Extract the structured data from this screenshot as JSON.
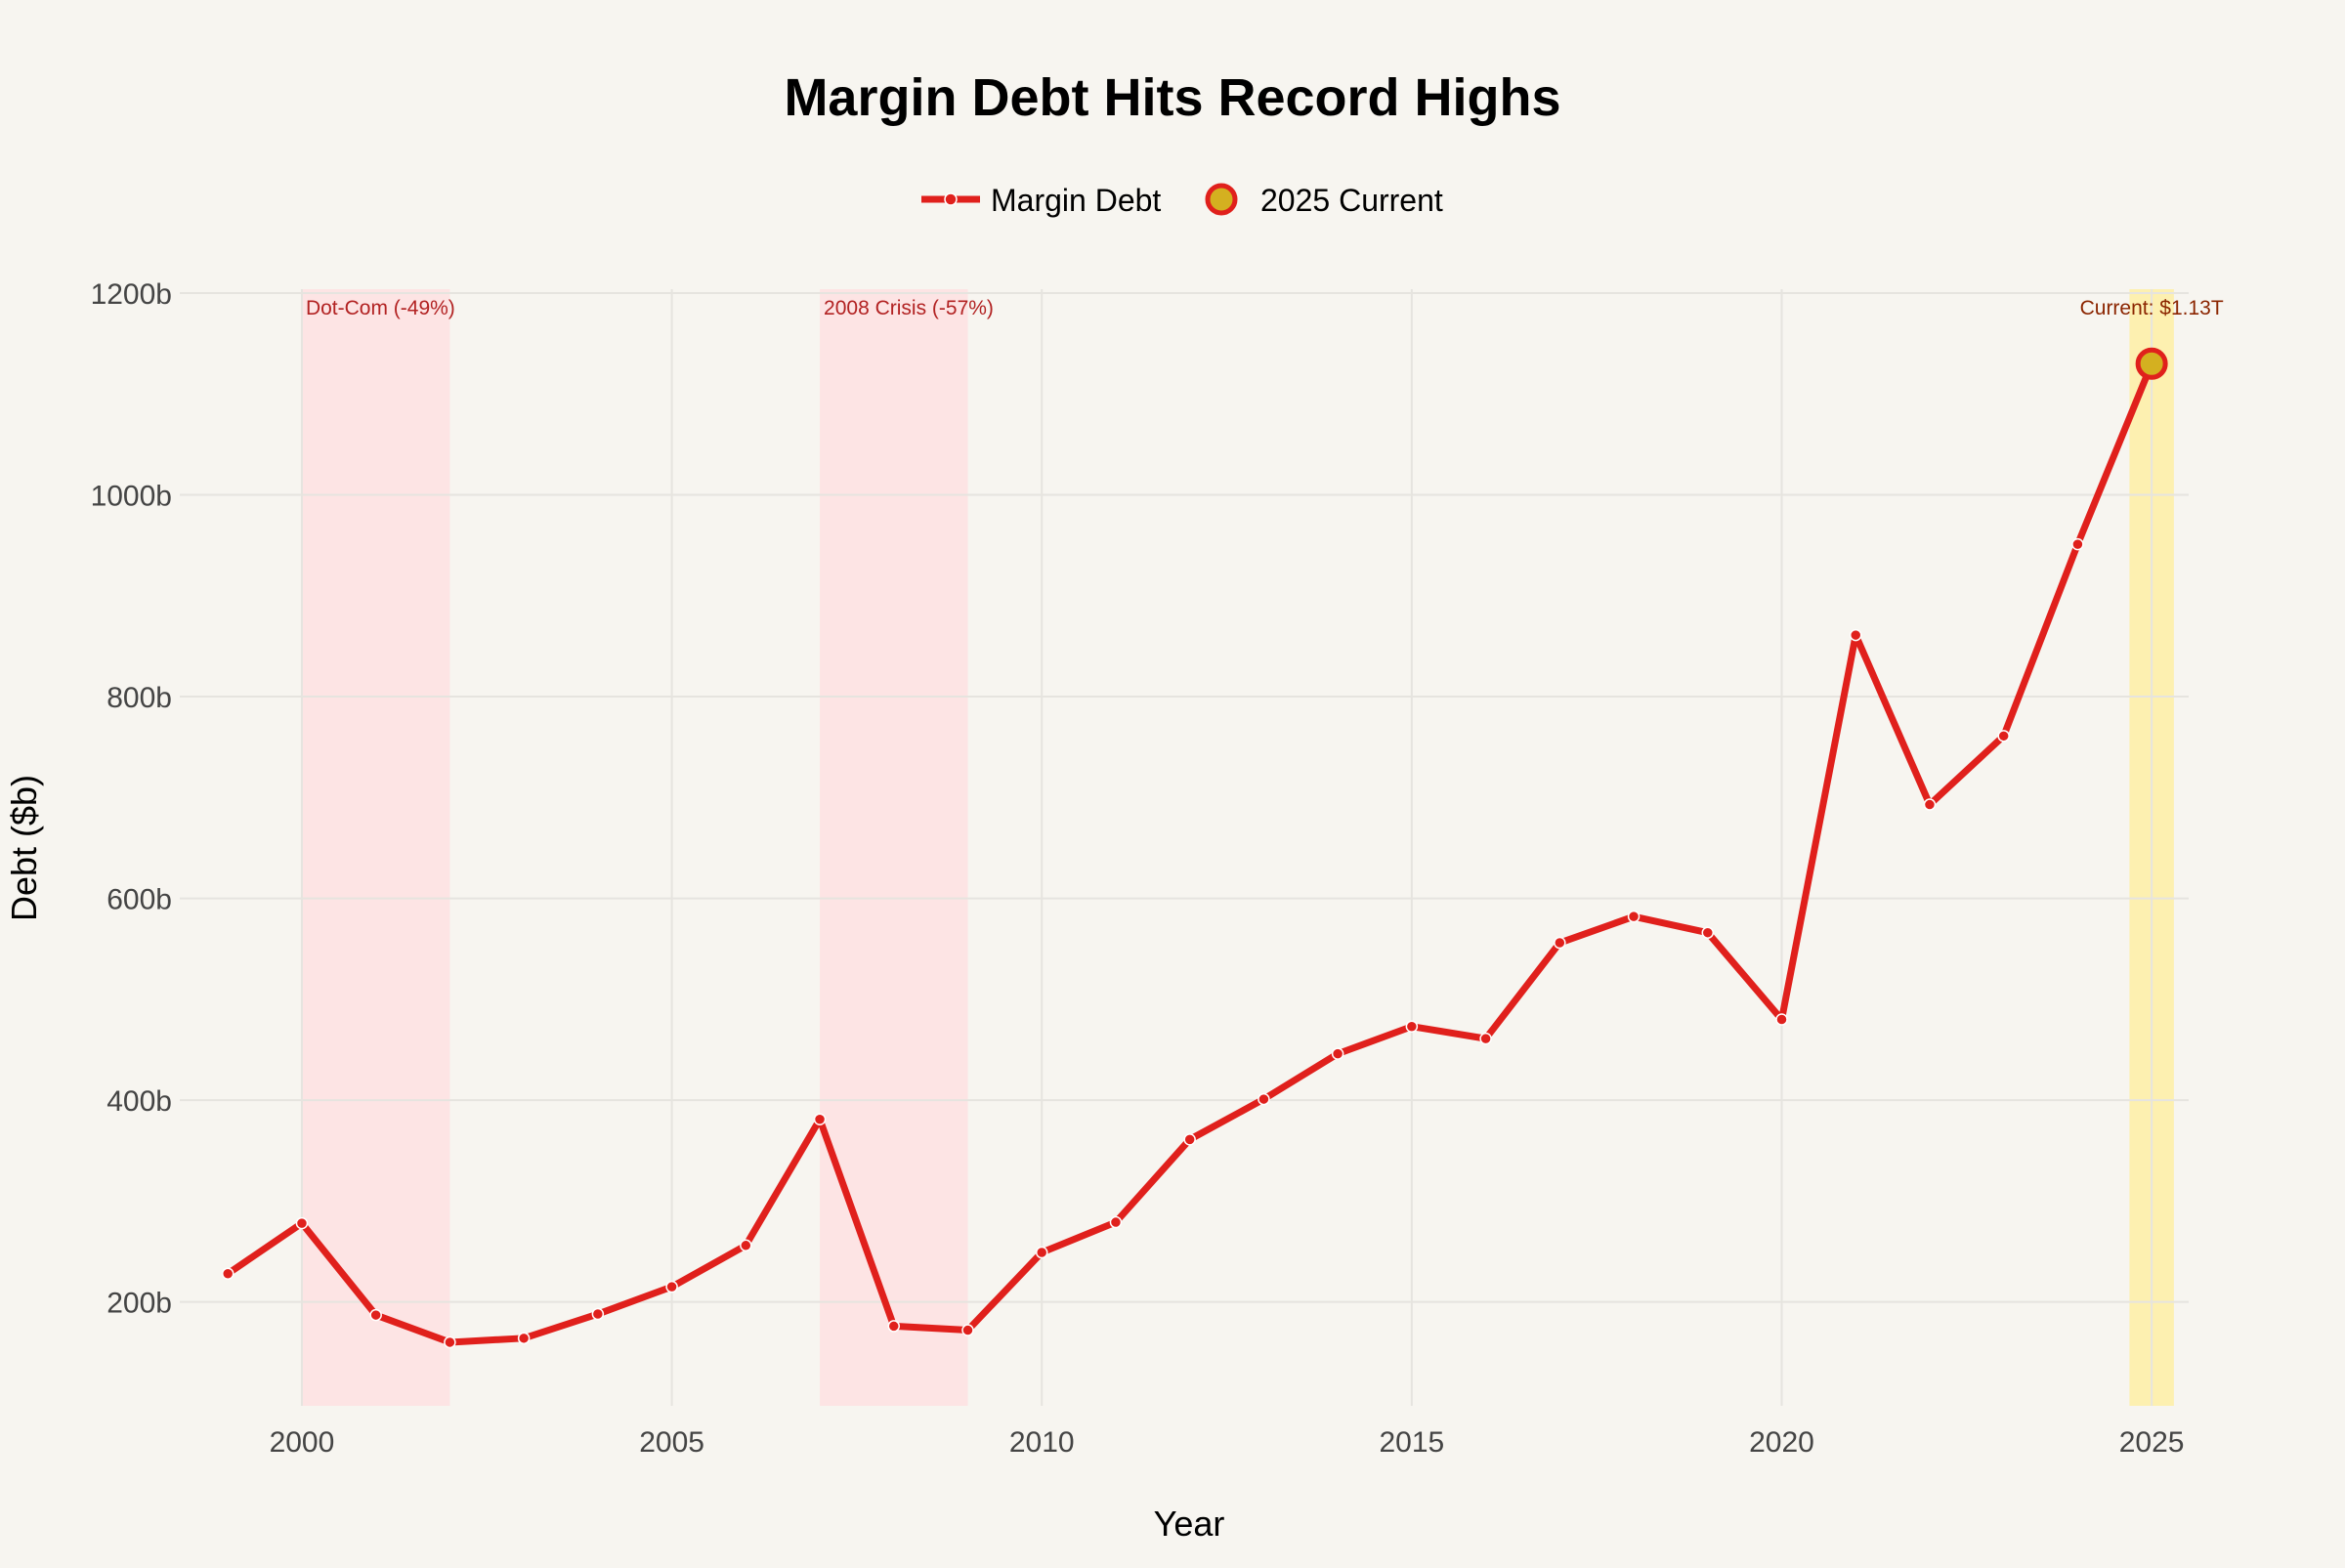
{
  "chart_data": {
    "type": "line",
    "title": "Margin Debt Hits Record Highs",
    "xlabel": "Year",
    "ylabel": "Debt ($b)",
    "xlim": [
      1998.35,
      2025.5
    ],
    "ylim": [
      97,
      1200
    ],
    "grid": true,
    "legend_placement": "top-center",
    "x_ticks": [
      2000,
      2005,
      2010,
      2015,
      2020,
      2025
    ],
    "x_tick_labels": [
      "2000",
      "2005",
      "2010",
      "2015",
      "2020",
      "2025"
    ],
    "y_ticks": [
      200,
      400,
      600,
      800,
      1000,
      1200
    ],
    "y_tick_labels": [
      "200b",
      "400b",
      "600b",
      "800b",
      "1000b",
      "1200b"
    ],
    "series": [
      {
        "name": "Margin Debt",
        "color": "#e0201c",
        "x": [
          1999,
          2000,
          2001,
          2002,
          2003,
          2004,
          2005,
          2006,
          2007,
          2008,
          2009,
          2010,
          2011,
          2012,
          2013,
          2014,
          2015,
          2016,
          2017,
          2018,
          2019,
          2020,
          2021,
          2022,
          2023,
          2024,
          2025
        ],
        "y": [
          228,
          278,
          187,
          160,
          164,
          188,
          215,
          256,
          381,
          176,
          172,
          249,
          279,
          361,
          401,
          446,
          473,
          461,
          556,
          582,
          566,
          480,
          861,
          693,
          761,
          951,
          1130
        ]
      }
    ],
    "highlight_point": {
      "name": "2025 Current",
      "x": 2025,
      "y": 1130,
      "fill": "#d4b020",
      "stroke": "#e0201c"
    },
    "shaded_regions": [
      {
        "x0": 2000,
        "x1": 2002,
        "label": "Dot-Com (-49%)",
        "color": "#fde4e4",
        "label_color": "#b22222"
      },
      {
        "x0": 2007,
        "x1": 2009,
        "label": "2008 Crisis (-57%)",
        "color": "#fde4e4",
        "label_color": "#b22222"
      },
      {
        "x0": 2024.7,
        "x1": 2025.3,
        "label": "Current: $1.13T",
        "color": "#fdf0b0",
        "label_color": "#8b2500"
      }
    ]
  }
}
